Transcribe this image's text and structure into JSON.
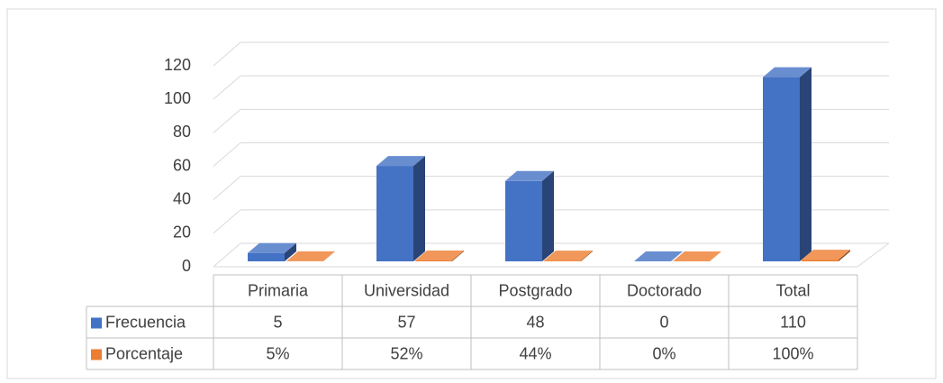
{
  "chart_data": {
    "type": "bar3d",
    "categories": [
      "Primaria",
      "Universidad",
      "Postgrado",
      "Doctorado",
      "Total"
    ],
    "series": [
      {
        "name": "Frecuencia",
        "color": "#4472c4",
        "values": [
          5,
          57,
          48,
          0,
          110
        ]
      },
      {
        "name": "Porcentaje",
        "color": "#ed7d31",
        "values": [
          0.05,
          0.52,
          0.44,
          0,
          1
        ],
        "value_labels": [
          "5%",
          "52%",
          "44%",
          "0%",
          "100%"
        ]
      }
    ],
    "ylim": [
      0,
      120
    ],
    "yticks": [
      0,
      20,
      40,
      60,
      80,
      100,
      120
    ],
    "grid": true,
    "data_table": true
  }
}
